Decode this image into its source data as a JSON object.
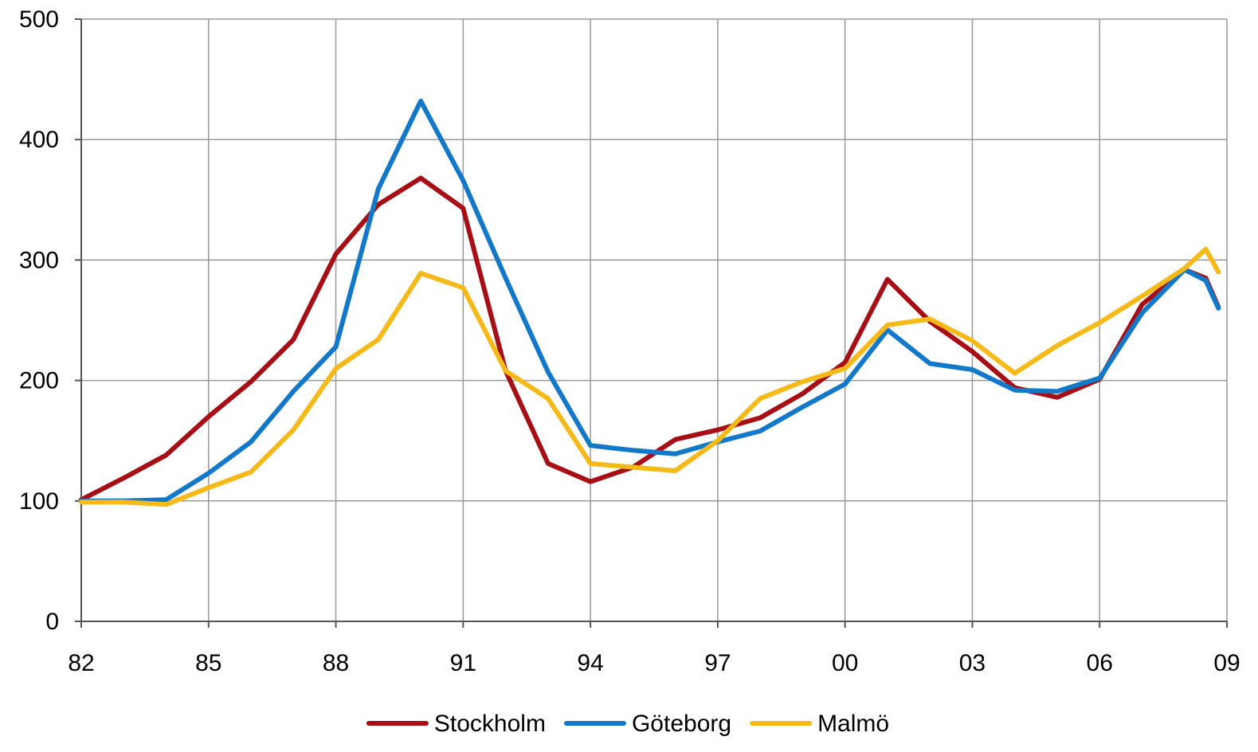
{
  "chart_data": {
    "type": "line",
    "title": "",
    "xlabel": "",
    "ylabel": "",
    "x": [
      1982,
      1983,
      1984,
      1985,
      1986,
      1987,
      1988,
      1989,
      1990,
      1991,
      1992,
      1993,
      1994,
      1995,
      1996,
      1997,
      1998,
      1999,
      2000,
      2001,
      2002,
      2003,
      2004,
      2005,
      2006,
      2007,
      2008,
      2008.5,
      2008.8
    ],
    "xlim": [
      1982,
      2009
    ],
    "ylim": [
      0,
      500
    ],
    "x_ticks": [
      {
        "value": 1982,
        "label": "82"
      },
      {
        "value": 1985,
        "label": "85"
      },
      {
        "value": 1988,
        "label": "88"
      },
      {
        "value": 1991,
        "label": "91"
      },
      {
        "value": 1994,
        "label": "94"
      },
      {
        "value": 1997,
        "label": "97"
      },
      {
        "value": 2000,
        "label": "00"
      },
      {
        "value": 2003,
        "label": "03"
      },
      {
        "value": 2006,
        "label": "06"
      },
      {
        "value": 2009,
        "label": "09"
      }
    ],
    "y_ticks": [
      {
        "value": 0,
        "label": "0"
      },
      {
        "value": 100,
        "label": "100"
      },
      {
        "value": 200,
        "label": "200"
      },
      {
        "value": 300,
        "label": "300"
      },
      {
        "value": 400,
        "label": "400"
      },
      {
        "value": 500,
        "label": "500"
      }
    ],
    "grid": true,
    "legend_position": "bottom",
    "series": [
      {
        "name": "Stockholm",
        "color": "#A50F15",
        "values": [
          101,
          119,
          138,
          170,
          199,
          234,
          305,
          346,
          368,
          343,
          208,
          131,
          116,
          128,
          151,
          159,
          169,
          189,
          215,
          284,
          249,
          224,
          194,
          186,
          201,
          263,
          292,
          285,
          261
        ]
      },
      {
        "name": "Göteborg",
        "color": "#1478C8",
        "values": [
          100,
          100,
          101,
          123,
          149,
          191,
          228,
          359,
          432,
          366,
          285,
          207,
          146,
          142,
          139,
          149,
          158,
          178,
          197,
          242,
          214,
          209,
          192,
          191,
          202,
          256,
          292,
          283,
          260
        ]
      },
      {
        "name": "Malmö",
        "color": "#F5BA19",
        "values": [
          99,
          99,
          97,
          111,
          124,
          159,
          210,
          234,
          289,
          277,
          208,
          185,
          131,
          128,
          125,
          150,
          185,
          199,
          210,
          246,
          251,
          233,
          206,
          229,
          248,
          270,
          293,
          309,
          290
        ]
      }
    ]
  }
}
